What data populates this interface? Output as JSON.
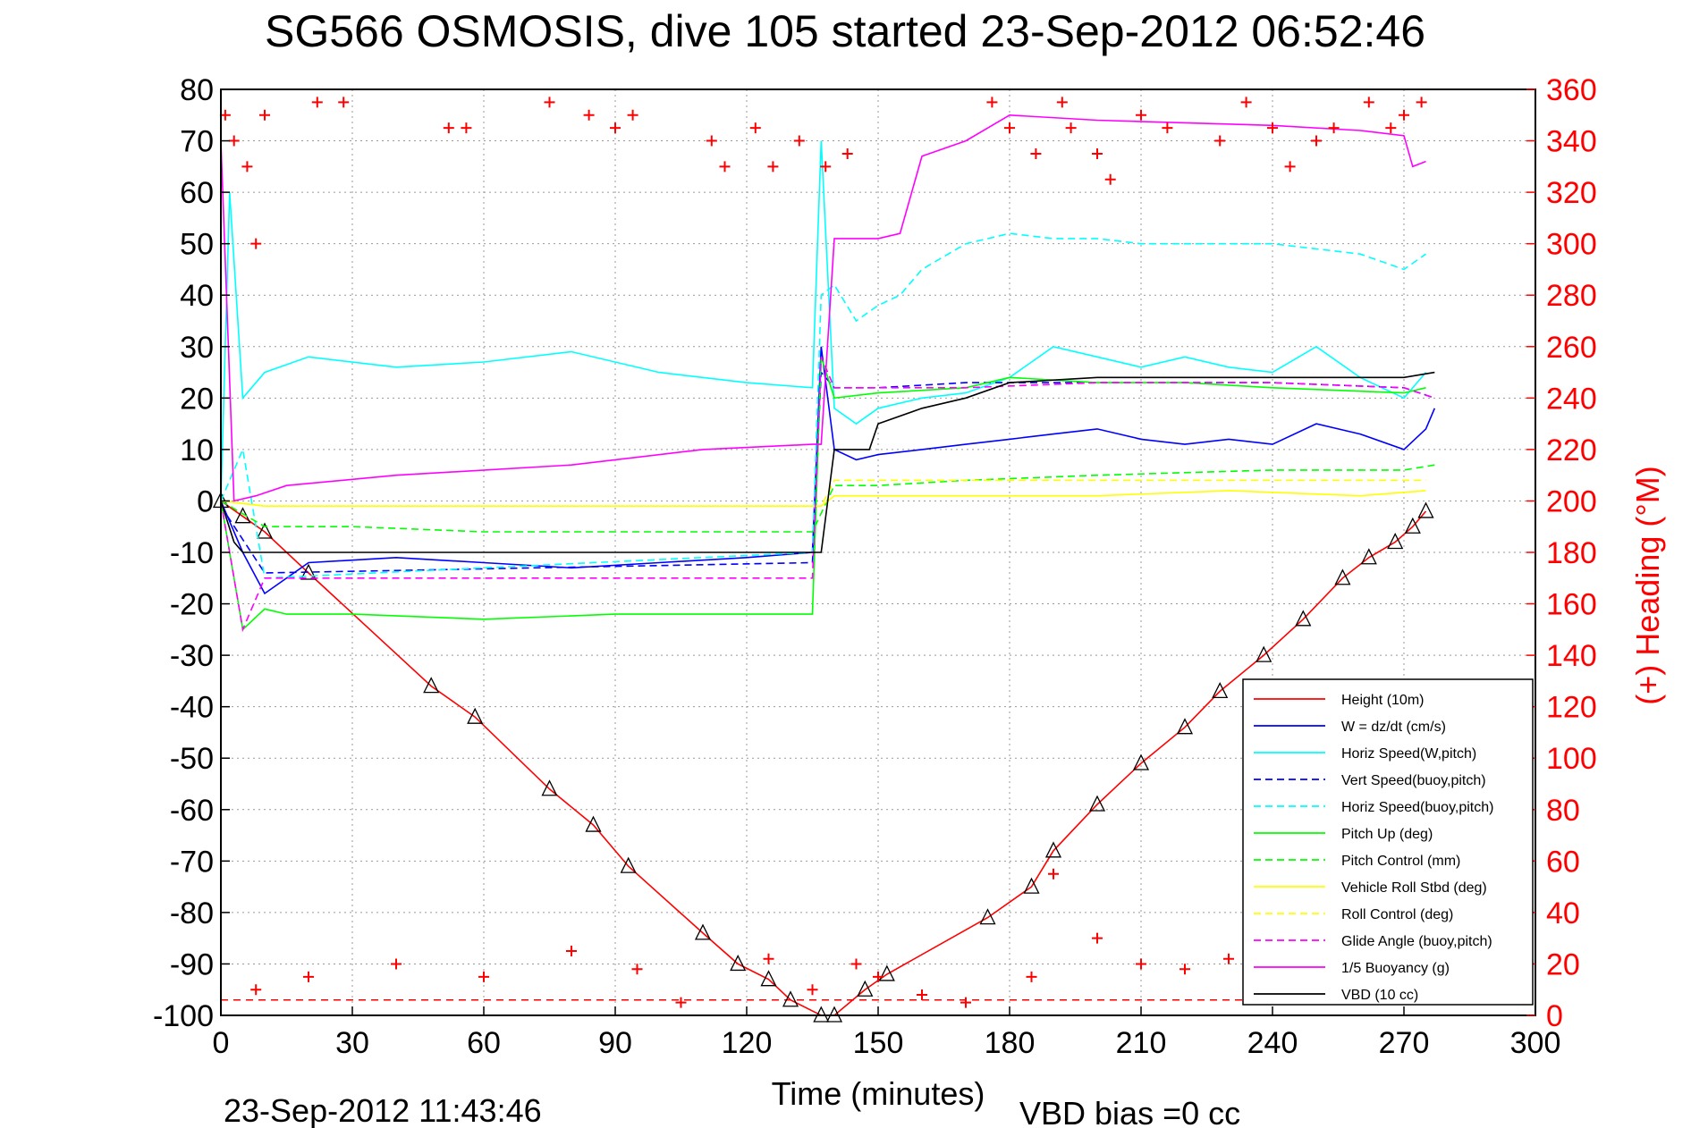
{
  "chart_data": {
    "type": "line",
    "title": "SG566 OSMOSIS, dive 105 started 23-Sep-2012 06:52:46",
    "xlabel": "Time (minutes)",
    "ylabel_right": "(+) Heading (°M)",
    "footer_left": "23-Sep-2012 11:43:46",
    "footer_right": "VBD bias =0 cc",
    "xlim": [
      0,
      300
    ],
    "ylim_left": [
      -100,
      80
    ],
    "ylim_right": [
      0,
      360
    ],
    "x_ticks": [
      0,
      30,
      60,
      90,
      120,
      150,
      180,
      210,
      240,
      270,
      300
    ],
    "y_ticks_left": [
      80,
      70,
      60,
      50,
      40,
      30,
      20,
      10,
      0,
      -10,
      -20,
      -30,
      -40,
      -50,
      -60,
      -70,
      -80,
      -90,
      -100
    ],
    "y_ticks_right": [
      360,
      340,
      320,
      300,
      280,
      260,
      240,
      220,
      200,
      180,
      160,
      140,
      120,
      100,
      80,
      60,
      40,
      20,
      0
    ],
    "grid": true,
    "legend_position": "bottom-right",
    "colors": {
      "height": "#ff0000",
      "w": "#0000ff",
      "horiz_speed": "#00ffff",
      "pitch": "#00ff00",
      "roll": "#ffff00",
      "glide": "#ff00ff",
      "buoyancy": "#ff00ff",
      "vbd": "#000000",
      "heading": "#ff0000"
    },
    "series": [
      {
        "name": "Height (10m)",
        "color": "#ff0000",
        "dash": false,
        "x": [
          0,
          5,
          10,
          20,
          48,
          58,
          75,
          85,
          93,
          110,
          118,
          125,
          130,
          137,
          140,
          147,
          152,
          175,
          185,
          190,
          200,
          210,
          220,
          228,
          238,
          247,
          256,
          262,
          268,
          272,
          275
        ],
        "y": [
          0,
          -3,
          -6,
          -14,
          -36,
          -42,
          -56,
          -63,
          -71,
          -84,
          -90,
          -93,
          -97,
          -100,
          -100,
          -95,
          -92,
          -81,
          -75,
          -68,
          -59,
          -51,
          -44,
          -37,
          -30,
          -23,
          -15,
          -11,
          -8,
          -5,
          -2
        ]
      },
      {
        "name": "W = dz/dt (cm/s)",
        "color": "#0000ff",
        "dash": false,
        "x": [
          0,
          5,
          10,
          20,
          40,
          60,
          80,
          100,
          120,
          135,
          137,
          140,
          145,
          150,
          160,
          170,
          180,
          190,
          200,
          210,
          220,
          230,
          240,
          250,
          260,
          270,
          275,
          277
        ],
        "y": [
          0,
          -10,
          -18,
          -12,
          -11,
          -12,
          -13,
          -12,
          -11,
          -10,
          30,
          10,
          8,
          9,
          10,
          11,
          12,
          13,
          14,
          12,
          11,
          12,
          11,
          15,
          13,
          10,
          14,
          18
        ]
      },
      {
        "name": "Horiz Speed(W,pitch)",
        "color": "#00ffff",
        "dash": false,
        "x": [
          0,
          2,
          5,
          10,
          20,
          40,
          60,
          80,
          100,
          120,
          135,
          137,
          140,
          145,
          150,
          160,
          170,
          180,
          190,
          200,
          210,
          220,
          230,
          240,
          250,
          260,
          270,
          275
        ],
        "y": [
          0,
          60,
          20,
          25,
          28,
          26,
          27,
          29,
          25,
          23,
          22,
          70,
          18,
          15,
          18,
          20,
          21,
          24,
          30,
          28,
          26,
          28,
          26,
          25,
          30,
          24,
          20,
          25
        ]
      },
      {
        "name": "Vert Speed(buoy,pitch)",
        "color": "#0000ff",
        "dash": true,
        "x": [
          0,
          10,
          135,
          137,
          140,
          150,
          170,
          200,
          240,
          270,
          277
        ],
        "y": [
          -1,
          -14,
          -12,
          25,
          22,
          22,
          23,
          23,
          23,
          22,
          20
        ]
      },
      {
        "name": "Horiz Speed(buoy,pitch)",
        "color": "#00ffff",
        "dash": true,
        "x": [
          0,
          5,
          10,
          135,
          137,
          140,
          145,
          150,
          155,
          160,
          170,
          180,
          190,
          200,
          210,
          220,
          240,
          260,
          270,
          275
        ],
        "y": [
          0,
          10,
          -15,
          -10,
          40,
          42,
          35,
          38,
          40,
          45,
          50,
          52,
          51,
          51,
          50,
          50,
          50,
          48,
          45,
          48
        ]
      },
      {
        "name": "Pitch Up (deg)",
        "color": "#00ff00",
        "dash": false,
        "x": [
          0,
          5,
          10,
          15,
          30,
          60,
          90,
          120,
          135,
          137,
          140,
          150,
          170,
          180,
          200,
          220,
          240,
          270,
          275
        ],
        "y": [
          0,
          -25,
          -21,
          -22,
          -22,
          -23,
          -22,
          -22,
          -22,
          28,
          20,
          21,
          22,
          24,
          23,
          23,
          22,
          21,
          22
        ]
      },
      {
        "name": "Pitch Control (mm)",
        "color": "#00ff00",
        "dash": true,
        "x": [
          0,
          10,
          30,
          60,
          90,
          120,
          135,
          140,
          150,
          170,
          200,
          240,
          270,
          277
        ],
        "y": [
          0,
          -5,
          -5,
          -6,
          -6,
          -6,
          -6,
          3,
          3,
          4,
          5,
          6,
          6,
          7
        ]
      },
      {
        "name": "Vehicle Roll Stbd (deg)",
        "color": "#ffff00",
        "dash": false,
        "x": [
          0,
          10,
          20,
          40,
          60,
          80,
          100,
          120,
          137,
          140,
          170,
          200,
          230,
          260,
          275
        ],
        "y": [
          0,
          -1,
          -1,
          -1,
          -1,
          -1,
          -1,
          -1,
          -1,
          1,
          1,
          1,
          2,
          1,
          2
        ]
      },
      {
        "name": "Roll Control (deg)",
        "color": "#ffff00",
        "dash": true,
        "x": [
          0,
          10,
          60,
          120,
          137,
          140,
          180,
          220,
          260,
          275
        ],
        "y": [
          0,
          -1,
          -1,
          -1,
          -1,
          4,
          4,
          4,
          4,
          4
        ]
      },
      {
        "name": "Glide Angle (buoy,pitch)",
        "color": "#ff00ff",
        "dash": true,
        "x": [
          0,
          5,
          10,
          15,
          60,
          120,
          135,
          137,
          140,
          170,
          200,
          240,
          270,
          277
        ],
        "y": [
          0,
          -25,
          -15,
          -15,
          -15,
          -15,
          -15,
          28,
          22,
          22,
          23,
          23,
          22,
          20
        ]
      },
      {
        "name": "1/5 Buoyancy (g)",
        "color": "#ff00ff",
        "dash": false,
        "x": [
          0,
          3,
          8,
          15,
          40,
          80,
          110,
          135,
          137,
          140,
          150,
          155,
          160,
          170,
          180,
          200,
          240,
          260,
          270,
          272,
          275
        ],
        "y": [
          70,
          0,
          1,
          3,
          5,
          7,
          10,
          11,
          11,
          51,
          51,
          52,
          67,
          70,
          75,
          74,
          73,
          72,
          71,
          65,
          66
        ]
      },
      {
        "name": "VBD (10 cc)",
        "color": "#000000",
        "dash": false,
        "x": [
          0,
          3,
          5,
          135,
          137,
          140,
          148,
          150,
          160,
          170,
          180,
          200,
          240,
          270,
          277
        ],
        "y": [
          0,
          -8,
          -10,
          -10,
          -10,
          10,
          10,
          15,
          18,
          20,
          23,
          24,
          24,
          24,
          25
        ]
      }
    ],
    "heading_points": {
      "name": "(+) Heading",
      "x": [
        1,
        3,
        6,
        8,
        10,
        22,
        28,
        52,
        56,
        75,
        84,
        90,
        94,
        112,
        115,
        122,
        126,
        132,
        138,
        143,
        176,
        180,
        186,
        192,
        194,
        200,
        203,
        210,
        216,
        228,
        234,
        240,
        244,
        250,
        254,
        262,
        267,
        270,
        274,
        8,
        20,
        40,
        60,
        80,
        95,
        105,
        125,
        135,
        145,
        150,
        160,
        170,
        185,
        190,
        200,
        210,
        220,
        230,
        250,
        260,
        270
      ],
      "y": [
        350,
        340,
        330,
        300,
        350,
        355,
        355,
        345,
        345,
        355,
        350,
        345,
        350,
        340,
        330,
        345,
        330,
        340,
        330,
        335,
        355,
        345,
        335,
        355,
        345,
        335,
        325,
        350,
        345,
        340,
        355,
        345,
        330,
        340,
        345,
        355,
        345,
        350,
        355,
        10,
        15,
        20,
        15,
        25,
        18,
        5,
        22,
        10,
        20,
        15,
        8,
        5,
        15,
        55,
        30,
        20,
        18,
        22,
        15,
        10,
        20
      ]
    },
    "reference_line": {
      "y_right": 6,
      "dash": true,
      "color": "#ff0000"
    }
  }
}
